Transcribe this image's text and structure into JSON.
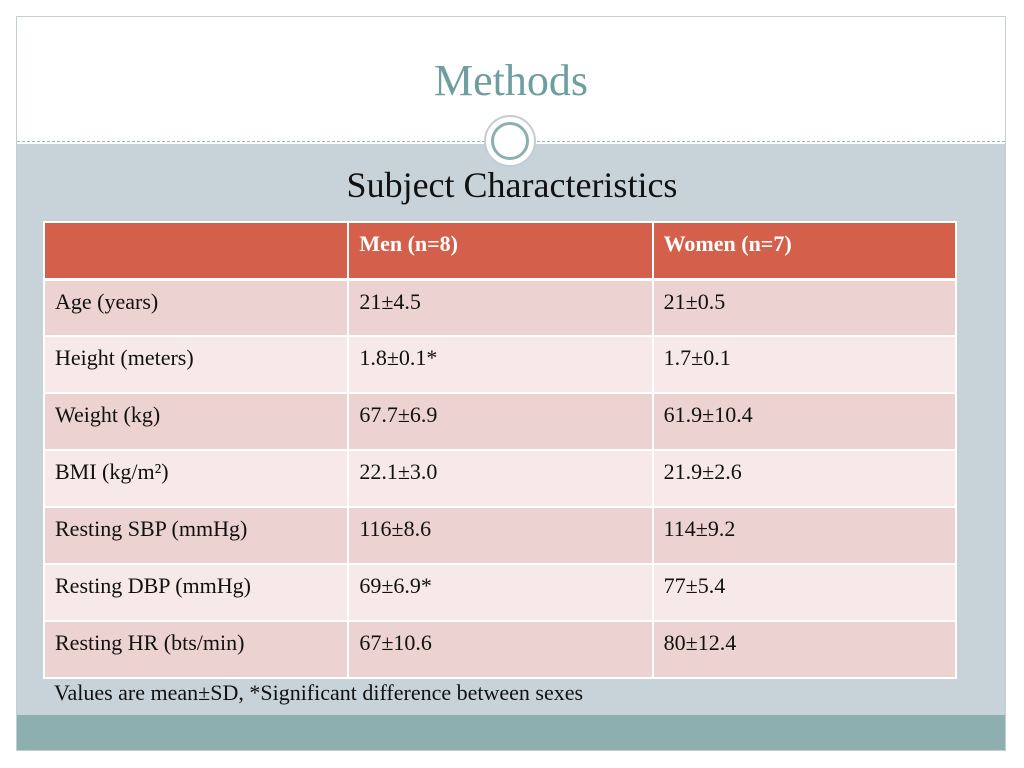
{
  "slide": {
    "title": "Methods",
    "subtitle": "Subject Characteristics",
    "footnote": "Values are mean±SD, *Significant difference between sexes"
  },
  "table": {
    "headers": [
      "",
      "Men (n=8)",
      "Women (n=7)"
    ],
    "rows": [
      [
        "Age (years)",
        "21±4.5",
        "21±0.5"
      ],
      [
        "Height (meters)",
        "1.8±0.1*",
        "1.7±0.1"
      ],
      [
        "Weight (kg)",
        "67.7±6.9",
        "61.9±10.4"
      ],
      [
        "BMI (kg/m²)",
        "22.1±3.0",
        "21.9±2.6"
      ],
      [
        "Resting SBP (mmHg)",
        "116±8.6",
        "114±9.2"
      ],
      [
        "Resting DBP (mmHg)",
        "69±6.9*",
        "77±5.4"
      ],
      [
        "Resting HR (bts/min)",
        "67±10.6",
        "80±12.4"
      ]
    ]
  },
  "colors": {
    "title": "#6f9ea0",
    "header_bg": "#d4604b",
    "row_odd": "#ecd2d0",
    "row_even": "#f6e9e8",
    "body_bg": "#c7d3d9",
    "bottom_bar": "#8eafaf"
  },
  "icons": [
    "ring-ornament-icon"
  ]
}
